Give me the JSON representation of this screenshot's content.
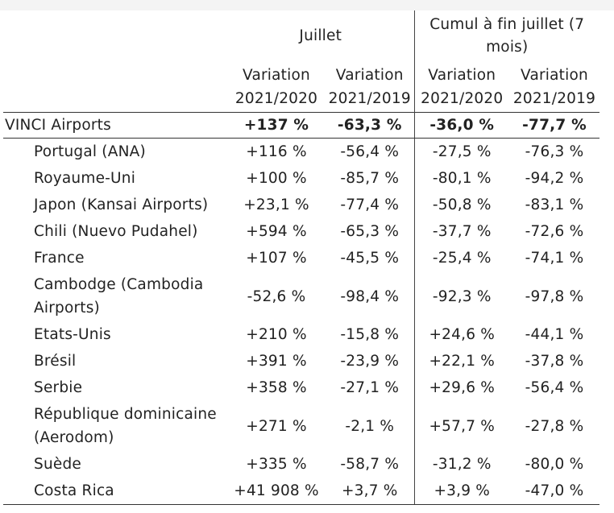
{
  "header": {
    "juillet": "Juillet",
    "cumul": "Cumul à fin juillet (7 mois)",
    "col_label": "Variation",
    "period_2021_2020": "2021/2020",
    "period_2021_2019": "2021/2019"
  },
  "total": {
    "name": "VINCI Airports",
    "v1": "+137 %",
    "v2": "-63,3 %",
    "v3": "-36,0 %",
    "v4": "-77,7 %"
  },
  "rows": [
    {
      "name": "Portugal (ANA)",
      "v1": "+116 %",
      "v2": "-56,4 %",
      "v3": "-27,5 %",
      "v4": "-76,3 %"
    },
    {
      "name": "Royaume-Uni",
      "v1": "+100 %",
      "v2": "-85,7 %",
      "v3": "-80,1 %",
      "v4": "-94,2 %"
    },
    {
      "name": "Japon (Kansai Airports)",
      "v1": "+23,1 %",
      "v2": "-77,4 %",
      "v3": "-50,8 %",
      "v4": "-83,1 %"
    },
    {
      "name": "Chili (Nuevo Pudahel)",
      "v1": "+594 %",
      "v2": "-65,3 %",
      "v3": "-37,7 %",
      "v4": "-72,6 %"
    },
    {
      "name": "France",
      "v1": "+107 %",
      "v2": "-45,5 %",
      "v3": "-25,4 %",
      "v4": "-74,1 %"
    },
    {
      "name": "Cambodge (Cambodia Airports)",
      "v1": "-52,6 %",
      "v2": "-98,4 %",
      "v3": "-92,3 %",
      "v4": "-97,8 %"
    },
    {
      "name": "Etats-Unis",
      "v1": "+210 %",
      "v2": "-15,8 %",
      "v3": "+24,6 %",
      "v4": "-44,1 %"
    },
    {
      "name": "Brésil",
      "v1": "+391 %",
      "v2": "-23,9 %",
      "v3": "+22,1 %",
      "v4": "-37,8 %"
    },
    {
      "name": "Serbie",
      "v1": "+358 %",
      "v2": "-27,1 %",
      "v3": "+29,6 %",
      "v4": "-56,4 %"
    },
    {
      "name": "République dominicaine (Aerodom)",
      "v1": "+271 %",
      "v2": "-2,1 %",
      "v3": "+57,7 %",
      "v4": "-27,8 %"
    },
    {
      "name": "Suède",
      "v1": "+335 %",
      "v2": "-58,7 %",
      "v3": "-31,2 %",
      "v4": "-80,0 %"
    },
    {
      "name": "Costa Rica",
      "v1": "+41 908 %",
      "v2": "+3,7 %",
      "v3": "+3,9 %",
      "v4": "-47,0 %"
    }
  ]
}
